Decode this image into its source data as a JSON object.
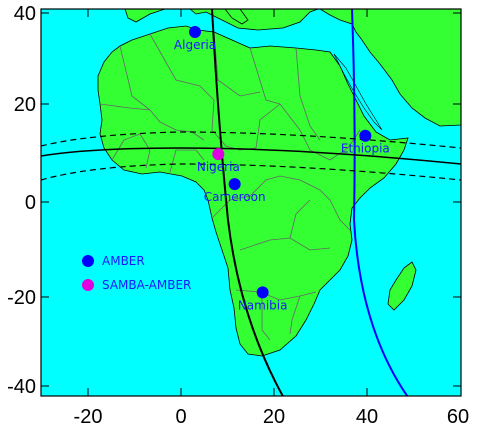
{
  "map": {
    "lon_range": [
      -30,
      60
    ],
    "lat_range": [
      -42,
      42
    ],
    "x_ticks": [
      "-20",
      "0",
      "20",
      "40",
      "60"
    ],
    "y_ticks": [
      "40",
      "20",
      "0",
      "-20",
      "-40"
    ],
    "colors": {
      "ocean": "#00ffff",
      "land": "#33ff33",
      "borders": "#666666",
      "amber": "#0000ff",
      "samba": "#e000e0",
      "label": "#1a1aff"
    }
  },
  "sites": [
    {
      "name": "Algeria",
      "lon": 3,
      "lat": 37,
      "network": "AMBER"
    },
    {
      "name": "Nigeria",
      "lon": 8,
      "lat": 10.5,
      "network": "SAMBA-AMBER"
    },
    {
      "name": "Cameroon",
      "lon": 11.5,
      "lat": 4,
      "network": "AMBER"
    },
    {
      "name": "Ethiopia",
      "lon": 39.5,
      "lat": 14.5,
      "network": "AMBER"
    },
    {
      "name": "Namibia",
      "lon": 17.5,
      "lat": -19.5,
      "network": "AMBER"
    }
  ],
  "legend": [
    {
      "label": "AMBER",
      "color": "#0000ff"
    },
    {
      "label": "SAMBA-AMBER",
      "color": "#e000e0"
    }
  ]
}
